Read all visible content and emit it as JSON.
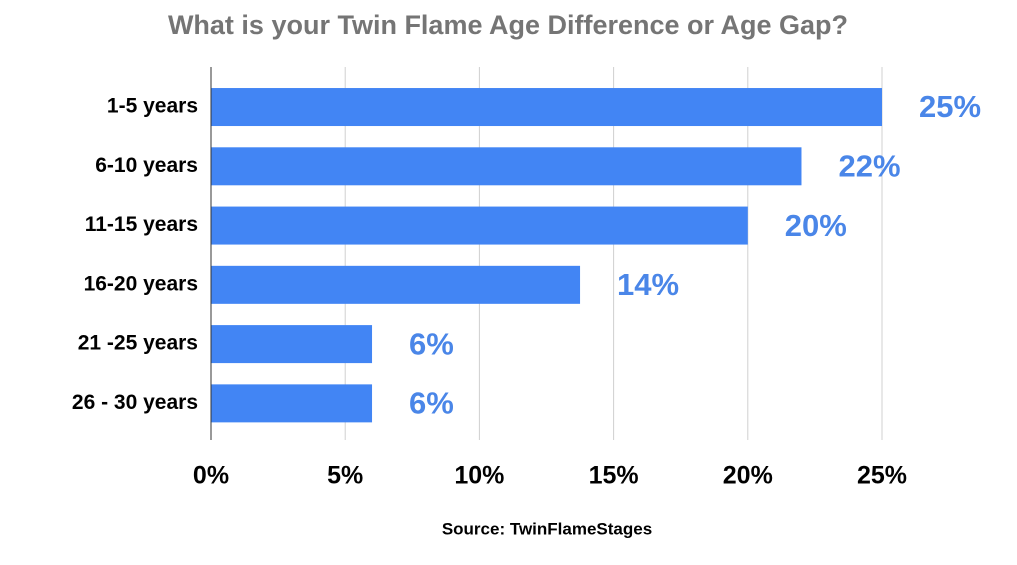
{
  "chart_data": {
    "type": "hbar",
    "title": "What is your Twin Flame Age Difference or Age Gap?",
    "categories": [
      "1-5 years",
      "6-10 years",
      "11-15 years",
      "16-20 years",
      "21 -25 years",
      "26 - 30 years"
    ],
    "values": [
      25,
      22,
      20,
      13.75,
      6,
      6
    ],
    "value_labels": [
      "25%",
      "22%",
      "20%",
      "14%",
      "6%",
      "6%"
    ],
    "color": "#4285f4",
    "xlim": [
      0,
      25
    ],
    "xticks": [
      {
        "value": 0,
        "label": "0%"
      },
      {
        "value": 5,
        "label": "5%"
      },
      {
        "value": 10,
        "label": "10%"
      },
      {
        "value": 15,
        "label": "15%"
      },
      {
        "value": 20,
        "label": "20%"
      },
      {
        "value": 25,
        "label": "25%"
      }
    ],
    "grid": true,
    "source": "Source: TwinFlameStages"
  }
}
